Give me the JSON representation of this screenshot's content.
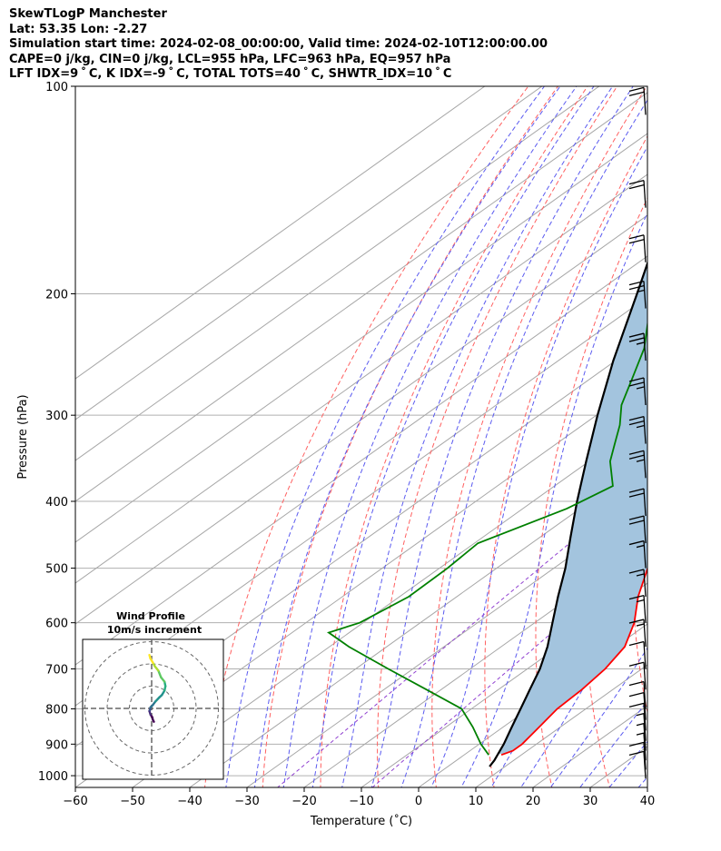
{
  "header": {
    "title": "SkewTLogP Manchester",
    "location": "Lat: 53.35   Lon: -2.27",
    "times": "Simulation start time: 2024-02-08_00:00:00, Valid time: 2024-02-10T12:00:00.00",
    "indices1": "CAPE=0 j/kg, CIN=0 j/kg, LCL=955 hPa, LFC=963 hPa, EQ=957 hPa",
    "indices2": "LFT IDX=9 ˚ C, K IDX=-9 ˚ C, TOTAL TOTS=40 ˚ C, SHWTR_IDX=10 ˚ C"
  },
  "colors": {
    "temperature": "#ff0000",
    "dewpoint": "#008000",
    "parcel": "#000000",
    "shading": "#a3c4de",
    "isotherm": "#a6a6a6",
    "dry_adiabat": "#ff6060",
    "moist_adiabat": "#5a5af0",
    "mixing_ratio": "#9040d0"
  },
  "chart_data": {
    "type": "skewt",
    "xlabel": "Temperature (˚C)",
    "ylabel": "Pressure (hPa)",
    "xlim": [
      -60,
      40
    ],
    "ylim": [
      1040,
      100
    ],
    "x_ticks": [
      -60,
      -50,
      -40,
      -30,
      -20,
      -10,
      0,
      10,
      20,
      30,
      40
    ],
    "y_ticks": [
      100,
      200,
      300,
      400,
      500,
      600,
      700,
      800,
      900,
      1000
    ],
    "temperature": {
      "pressure": [
        933,
        920,
        900,
        850,
        800,
        750,
        700,
        650,
        600,
        550,
        500,
        450,
        400,
        350,
        320,
        300,
        275,
        260,
        240,
        220,
        200,
        180,
        160,
        145,
        130,
        120,
        110,
        100
      ],
      "values": [
        6.5,
        7.5,
        7.5,
        6.3,
        5.0,
        4.6,
        3.6,
        1.6,
        -2.6,
        -8.3,
        -13.6,
        -19.9,
        -27.1,
        -36.3,
        -43.2,
        -48.3,
        -55.8,
        -60.4,
        -65.9,
        -70.0,
        -73.0,
        -76.2,
        -80.1,
        -84.0,
        -88.0,
        -92.0,
        -96.0,
        -100.0
      ]
    },
    "dewpoint": {
      "pressure": [
        933,
        900,
        850,
        800,
        750,
        700,
        650,
        620,
        600,
        550,
        500,
        460,
        410,
        380,
        350,
        330,
        310,
        290,
        265,
        240,
        200,
        185,
        175,
        160,
        140,
        120,
        100
      ],
      "values": [
        4.3,
        0.3,
        -5.3,
        -11.7,
        -22.6,
        -34.3,
        -46.6,
        -53.6,
        -50.6,
        -48.4,
        -48.6,
        -49.4,
        -42.3,
        -39.8,
        -46.3,
        -49.8,
        -53.5,
        -58.1,
        -62.8,
        -68.0,
        -80.0,
        -84.0,
        -89.0,
        -92.0,
        -94.0,
        -96.0,
        -98.0
      ]
    },
    "parcel": {
      "pressure": [
        970,
        950,
        900,
        850,
        800,
        750,
        700,
        650,
        600,
        550,
        500,
        450,
        400,
        350,
        300,
        250,
        200,
        150,
        100
      ],
      "values": [
        7.3,
        6.6,
        4.3,
        1.5,
        -1.4,
        -4.5,
        -7.8,
        -11.9,
        -16.9,
        -22.3,
        -28.0,
        -34.8,
        -42.3,
        -50.5,
        -59.8,
        -70.4,
        -82.6,
        -98.5,
        -120.5
      ]
    },
    "wind_barbs": {
      "pressure": [
        110,
        150,
        180,
        210,
        250,
        290,
        330,
        370,
        420,
        460,
        500,
        550,
        600,
        650,
        700,
        750,
        800,
        830,
        860,
        890,
        920,
        950,
        980,
        1010
      ],
      "speed_kt": [
        20,
        20,
        20,
        25,
        25,
        25,
        25,
        25,
        20,
        20,
        15,
        15,
        15,
        15,
        10,
        10,
        10,
        10,
        10,
        5,
        5,
        5,
        10,
        10
      ]
    },
    "inset": {
      "title_line1": "Wind Profile",
      "title_line2": "10m/s increment",
      "rings_ms": [
        10,
        20,
        30
      ],
      "hodograph_u": [
        1.0,
        0.5,
        0.3,
        -0.5,
        -1.0,
        -0.8,
        -0.6,
        -0.5,
        0.5,
        1.6,
        3.5,
        4.6,
        5.8,
        6.2,
        5.8,
        4.2,
        3.0,
        1.4,
        0.6,
        -0.6,
        -1.0
      ],
      "hodograph_v": [
        6.0,
        5.0,
        4.0,
        2.8,
        1.2,
        0.8,
        0.0,
        -0.5,
        -1.5,
        -3.0,
        -5.0,
        -6.0,
        -8.0,
        -10.0,
        -12.0,
        -14.0,
        -17.0,
        -19.0,
        -20.5,
        -22.5,
        -24.0
      ]
    }
  }
}
